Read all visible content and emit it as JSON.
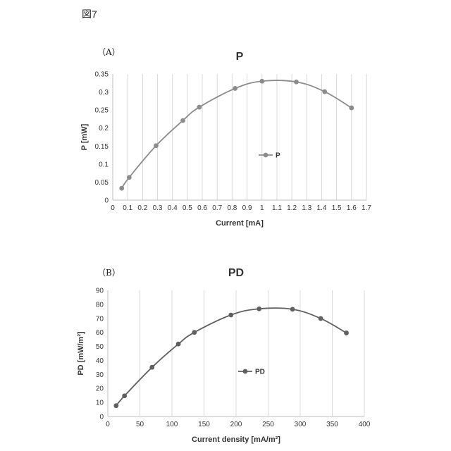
{
  "figure_label": "図7",
  "chart_data": [
    {
      "panel": "（A）",
      "type": "line",
      "title": "P",
      "xlabel": "Current  [mA]",
      "ylabel": "P  [mW]",
      "xlim": [
        0,
        1.7
      ],
      "ylim": [
        0,
        0.35
      ],
      "xticks": [
        "0",
        "0.1",
        "0.2",
        "0.3",
        "0.4",
        "0.5",
        "0.6",
        "0.7",
        "0.8",
        "0.9",
        "1",
        "1.1",
        "1.2",
        "1.3",
        "1.4",
        "1.5",
        "1.6",
        "1.7"
      ],
      "yticks": [
        "0",
        "0.05",
        "0.1",
        "0.15",
        "0.2",
        "0.25",
        "0.3",
        "0.35"
      ],
      "grid": "vertical",
      "legend": "right",
      "color": "#8c8c8c",
      "series": [
        {
          "name": "P",
          "x": [
            0.06,
            0.11,
            0.29,
            0.47,
            0.58,
            0.82,
            1.0,
            1.23,
            1.42,
            1.6
          ],
          "y": [
            0.033,
            0.063,
            0.151,
            0.221,
            0.258,
            0.31,
            0.33,
            0.328,
            0.301,
            0.256
          ]
        }
      ]
    },
    {
      "panel": "（B）",
      "type": "line",
      "title": "PD",
      "xlabel": "Current density [mA/m²]",
      "ylabel": "PD [mW/m²]",
      "xlim": [
        0,
        400
      ],
      "ylim": [
        0,
        90
      ],
      "xticks": [
        "0",
        "50",
        "100",
        "150",
        "200",
        "250",
        "300",
        "350",
        "400"
      ],
      "yticks": [
        "0",
        "10",
        "20",
        "30",
        "40",
        "50",
        "60",
        "70",
        "80",
        "90"
      ],
      "grid": "vertical",
      "legend": "right",
      "color": "#606060",
      "series": [
        {
          "name": "PD",
          "x": [
            13,
            26,
            69,
            110,
            135,
            192,
            236,
            288,
            332,
            372
          ],
          "y": [
            7.7,
            14.7,
            35.1,
            51.7,
            60.0,
            72.4,
            76.8,
            76.5,
            69.9,
            59.6
          ]
        }
      ]
    }
  ]
}
